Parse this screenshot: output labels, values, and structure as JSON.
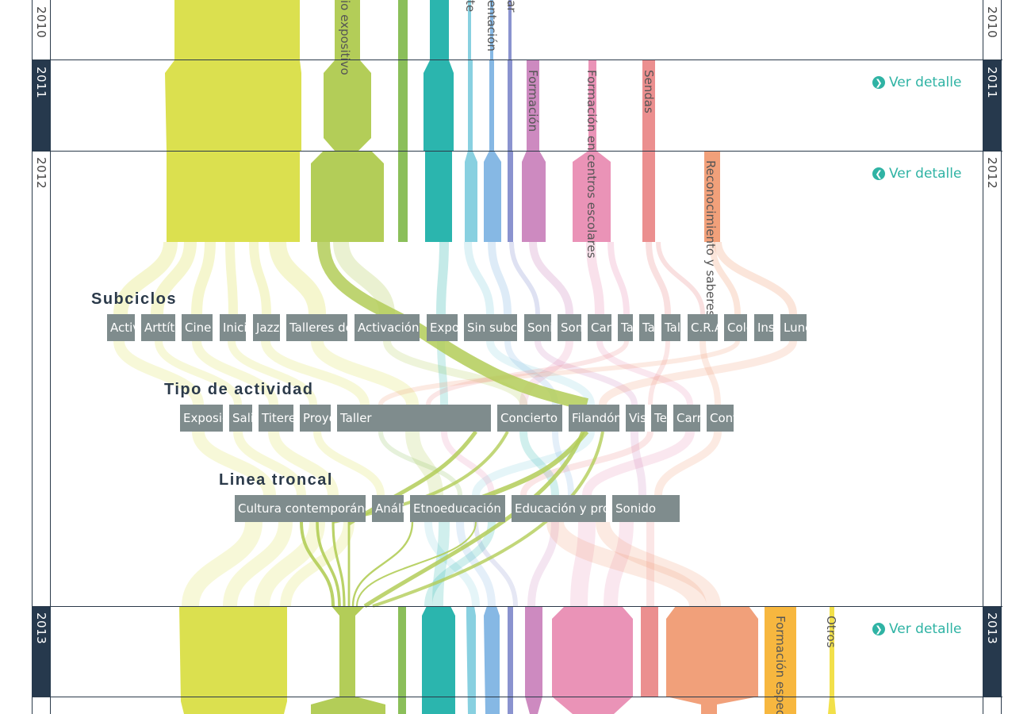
{
  "years": [
    {
      "label": "2010",
      "dark": false
    },
    {
      "label": "2011",
      "dark": true
    },
    {
      "label": "2012",
      "dark": false
    },
    {
      "label": "2013",
      "dark": true
    }
  ],
  "detail_label": "Ver detalle",
  "categories": [
    {
      "name": "",
      "color": "#dbe04f"
    },
    {
      "name": "io expositivo",
      "color": "#b3cd58"
    },
    {
      "name": "",
      "color": "#8bbf5a"
    },
    {
      "name": "",
      "color": "#2bb5ae"
    },
    {
      "name": "te",
      "color": "#88d0e0"
    },
    {
      "name": "entación",
      "color": "#86b8e4"
    },
    {
      "name": "ar",
      "color": "#8a93cf"
    },
    {
      "name": "Formación",
      "color": "#cd8ac0"
    },
    {
      "name": "Formación en centros escolares",
      "color": "#ea93b7"
    },
    {
      "name": "Sendas",
      "color": "#eb8f8f"
    },
    {
      "name": "Reconocimiento y saberes",
      "color": "#f1a07a"
    },
    {
      "name": "Formación especi",
      "color": "#f7b73f"
    },
    {
      "name": "Otros",
      "color": "#f2e04a"
    }
  ],
  "sections": {
    "subciclos": {
      "title": "Subciclos",
      "chips": [
        "Actividades",
        "Arttítere",
        "Cine",
        "Iniciación",
        "Jazz",
        "Talleres de",
        "Activación de",
        "Exposiciones",
        "Sin subciclo",
        "Sonido",
        "Sonoras",
        "Cartografías",
        "Taller",
        "Taller",
        "Talleres",
        "C.R.A.",
        "Colegios",
        "Instituciones",
        "Lunes"
      ]
    },
    "tipo": {
      "title": "Tipo de actividad",
      "chips": [
        "Exposición",
        "Salida",
        "Titeres",
        "Proyección",
        "Taller",
        "Concierto",
        "Filandón",
        "Visita",
        "Tertulia",
        "Carrera",
        "Conferencia"
      ]
    },
    "linea": {
      "title": "Linea troncal",
      "chips": [
        "Cultura contemporánea",
        "Análisis",
        "Etnoeducación",
        "Educación y programas",
        "Sonido"
      ]
    }
  }
}
